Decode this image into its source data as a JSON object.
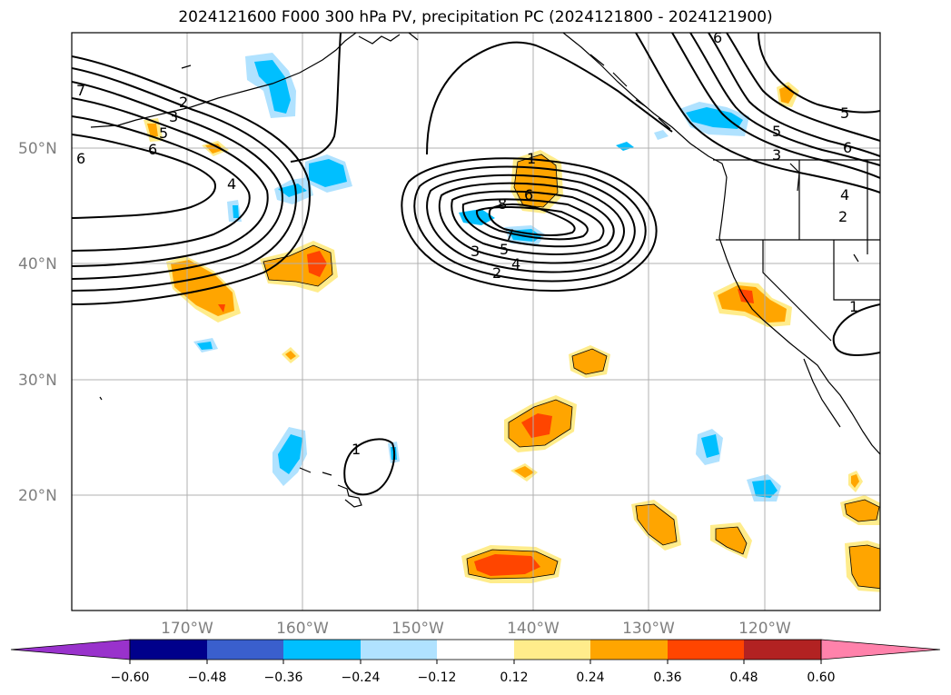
{
  "title": "2024121600 F000 300 hPa PV, precipitation PC (2024121800 - 2024121900)",
  "map": {
    "lon_range": [
      -180,
      -110
    ],
    "lat_range": [
      10,
      60
    ],
    "lat_ticks": [
      {
        "lat": 50,
        "label": "50°N"
      },
      {
        "lat": 40,
        "label": "40°N"
      },
      {
        "lat": 30,
        "label": "30°N"
      },
      {
        "lat": 20,
        "label": "20°N"
      }
    ],
    "lon_ticks": [
      {
        "lon": -170,
        "label": "170°W"
      },
      {
        "lon": -160,
        "label": "160°W"
      },
      {
        "lon": -150,
        "label": "150°W"
      },
      {
        "lon": -140,
        "label": "140°W"
      },
      {
        "lon": -130,
        "label": "130°W"
      },
      {
        "lon": -120,
        "label": "120°W"
      }
    ],
    "contour_labels": [
      "1",
      "2",
      "3",
      "4",
      "5",
      "6",
      "7",
      "8"
    ]
  },
  "colorbar": {
    "levels": [
      "−0.60",
      "−0.48",
      "−0.36",
      "−0.24",
      "−0.12",
      "0.12",
      "0.24",
      "0.36",
      "0.48",
      "0.60"
    ],
    "colors": [
      "#9932cc",
      "#00008b",
      "#3a5fcd",
      "#00bfff",
      "#b0e2ff",
      "#ffffff",
      "#ffec8b",
      "#ffa500",
      "#ff4500",
      "#b22222",
      "#ff82ab"
    ]
  },
  "colors": {
    "orange": "#ffa500",
    "light_yellow": "#ffec8b",
    "red_orange": "#ff4500",
    "sky_blue": "#00bfff",
    "light_blue": "#b0e2ff"
  }
}
